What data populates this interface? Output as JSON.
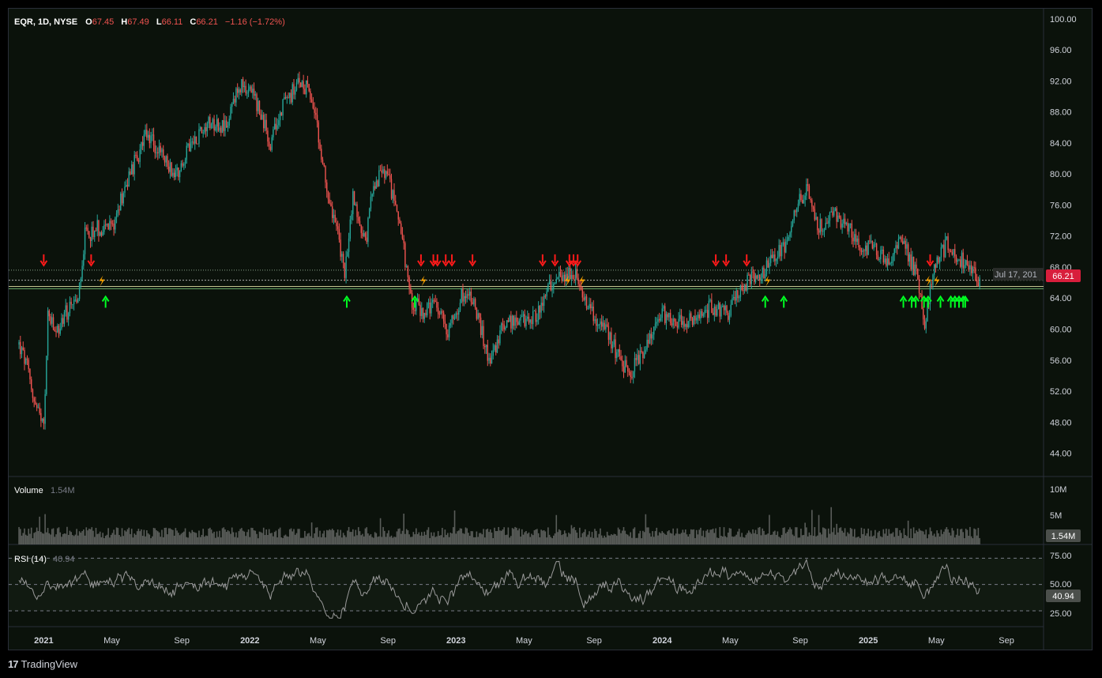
{
  "header": {
    "symbol": "EQR, 1D, NYSE",
    "o_label": "O",
    "o_value": "67.45",
    "h_label": "H",
    "h_value": "67.49",
    "l_label": "L",
    "l_value": "66.11",
    "c_label": "C",
    "c_value": "66.21",
    "change": "−1.16 (−1.72%)"
  },
  "price_axis": {
    "ticks": [
      "100.00",
      "96.00",
      "92.00",
      "88.00",
      "84.00",
      "80.00",
      "76.00",
      "72.00",
      "68.00",
      "64.00",
      "60.00",
      "56.00",
      "52.00",
      "48.00",
      "44.00"
    ],
    "last_price_label": "66.21",
    "level_label": "Jul 17, 201"
  },
  "volume_pane": {
    "title": "Volume",
    "value": "1.54M",
    "ticks": [
      "10M",
      "5M"
    ],
    "last_label": "1.54M"
  },
  "rsi_pane": {
    "title": "RSI (14)",
    "value": "40.94",
    "ticks": [
      "75.00",
      "50.00",
      "25.00"
    ],
    "last_label": "40.94"
  },
  "time_axis": {
    "labels": [
      "2021",
      "May",
      "Sep",
      "2022",
      "May",
      "Sep",
      "2023",
      "May",
      "Sep",
      "2024",
      "May",
      "Sep",
      "2025",
      "May",
      "Sep"
    ]
  },
  "footer": {
    "logo": "17",
    "name": "TradingView"
  },
  "colors": {
    "up": "#26a69a",
    "down": "#ef5350",
    "bg": "#0b120b",
    "arrow_up": "#00ff22",
    "arrow_down": "#ff1a1a",
    "bolt": "#ffa500",
    "price_label_bg": "#d81e3c"
  },
  "chart_data": {
    "type": "candlestick",
    "symbol": "EQR",
    "interval": "1D",
    "exchange": "NYSE",
    "ylim": [
      41,
      101
    ],
    "price_series": [
      {
        "t": 2020.88,
        "v": 58
      },
      {
        "t": 2020.92,
        "v": 55
      },
      {
        "t": 2020.96,
        "v": 50
      },
      {
        "t": 2021.0,
        "v": 47
      },
      {
        "t": 2021.02,
        "v": 62
      },
      {
        "t": 2021.06,
        "v": 59
      },
      {
        "t": 2021.1,
        "v": 62
      },
      {
        "t": 2021.16,
        "v": 63
      },
      {
        "t": 2021.2,
        "v": 72
      },
      {
        "t": 2021.26,
        "v": 73
      },
      {
        "t": 2021.33,
        "v": 73
      },
      {
        "t": 2021.4,
        "v": 79
      },
      {
        "t": 2021.5,
        "v": 85
      },
      {
        "t": 2021.58,
        "v": 82
      },
      {
        "t": 2021.64,
        "v": 80
      },
      {
        "t": 2021.72,
        "v": 84
      },
      {
        "t": 2021.8,
        "v": 87
      },
      {
        "t": 2021.88,
        "v": 86
      },
      {
        "t": 2021.96,
        "v": 92
      },
      {
        "t": 2022.02,
        "v": 90
      },
      {
        "t": 2022.1,
        "v": 84
      },
      {
        "t": 2022.16,
        "v": 89
      },
      {
        "t": 2022.25,
        "v": 92
      },
      {
        "t": 2022.3,
        "v": 90
      },
      {
        "t": 2022.36,
        "v": 80
      },
      {
        "t": 2022.42,
        "v": 73
      },
      {
        "t": 2022.46,
        "v": 67
      },
      {
        "t": 2022.5,
        "v": 77
      },
      {
        "t": 2022.56,
        "v": 71
      },
      {
        "t": 2022.6,
        "v": 79
      },
      {
        "t": 2022.66,
        "v": 80
      },
      {
        "t": 2022.72,
        "v": 75
      },
      {
        "t": 2022.78,
        "v": 64
      },
      {
        "t": 2022.84,
        "v": 62
      },
      {
        "t": 2022.9,
        "v": 63
      },
      {
        "t": 2022.96,
        "v": 60
      },
      {
        "t": 2023.04,
        "v": 65
      },
      {
        "t": 2023.08,
        "v": 64
      },
      {
        "t": 2023.16,
        "v": 56
      },
      {
        "t": 2023.24,
        "v": 61
      },
      {
        "t": 2023.32,
        "v": 61
      },
      {
        "t": 2023.4,
        "v": 62
      },
      {
        "t": 2023.46,
        "v": 66
      },
      {
        "t": 2023.52,
        "v": 67
      },
      {
        "t": 2023.58,
        "v": 67
      },
      {
        "t": 2023.66,
        "v": 62
      },
      {
        "t": 2023.72,
        "v": 60
      },
      {
        "t": 2023.8,
        "v": 56
      },
      {
        "t": 2023.84,
        "v": 54
      },
      {
        "t": 2023.92,
        "v": 58
      },
      {
        "t": 2024.0,
        "v": 62
      },
      {
        "t": 2024.08,
        "v": 61
      },
      {
        "t": 2024.16,
        "v": 61
      },
      {
        "t": 2024.24,
        "v": 63
      },
      {
        "t": 2024.32,
        "v": 62
      },
      {
        "t": 2024.4,
        "v": 66
      },
      {
        "t": 2024.48,
        "v": 67
      },
      {
        "t": 2024.54,
        "v": 69
      },
      {
        "t": 2024.6,
        "v": 71
      },
      {
        "t": 2024.66,
        "v": 76
      },
      {
        "t": 2024.7,
        "v": 78
      },
      {
        "t": 2024.76,
        "v": 73
      },
      {
        "t": 2024.84,
        "v": 75
      },
      {
        "t": 2024.9,
        "v": 73
      },
      {
        "t": 2024.96,
        "v": 71
      },
      {
        "t": 2025.04,
        "v": 70
      },
      {
        "t": 2025.1,
        "v": 69
      },
      {
        "t": 2025.16,
        "v": 72
      },
      {
        "t": 2025.2,
        "v": 69
      },
      {
        "t": 2025.24,
        "v": 67
      },
      {
        "t": 2025.27,
        "v": 60
      },
      {
        "t": 2025.32,
        "v": 68
      },
      {
        "t": 2025.38,
        "v": 71
      },
      {
        "t": 2025.44,
        "v": 69
      },
      {
        "t": 2025.5,
        "v": 68
      },
      {
        "t": 2025.54,
        "v": 66.21
      }
    ],
    "horizontal_levels": [
      67.6,
      66.3,
      65.5,
      65.2
    ],
    "signals_down": [
      2021.0,
      2021.23,
      2022.83,
      2022.89,
      2022.91,
      2022.95,
      2022.98,
      2023.08,
      2023.42,
      2023.48,
      2023.55,
      2023.57,
      2023.59,
      2024.26,
      2024.31,
      2024.41,
      2025.3
    ],
    "signals_up": [
      2021.3,
      2022.47,
      2022.8,
      2024.5,
      2024.59,
      2025.17,
      2025.21,
      2025.23,
      2025.27,
      2025.29,
      2025.35,
      2025.4,
      2025.42,
      2025.44,
      2025.46,
      2025.47
    ],
    "signals_bolt": [
      2021.28,
      2022.84,
      2023.54,
      2023.61,
      2024.51,
      2025.29,
      2025.33
    ],
    "last_close": 66.21,
    "volume_ylim": [
      0,
      12
    ],
    "volume_last_m": 1.54,
    "rsi_ylim": [
      10,
      85
    ],
    "rsi_last": 40.94,
    "rsi_bands": [
      75,
      50,
      25
    ]
  }
}
